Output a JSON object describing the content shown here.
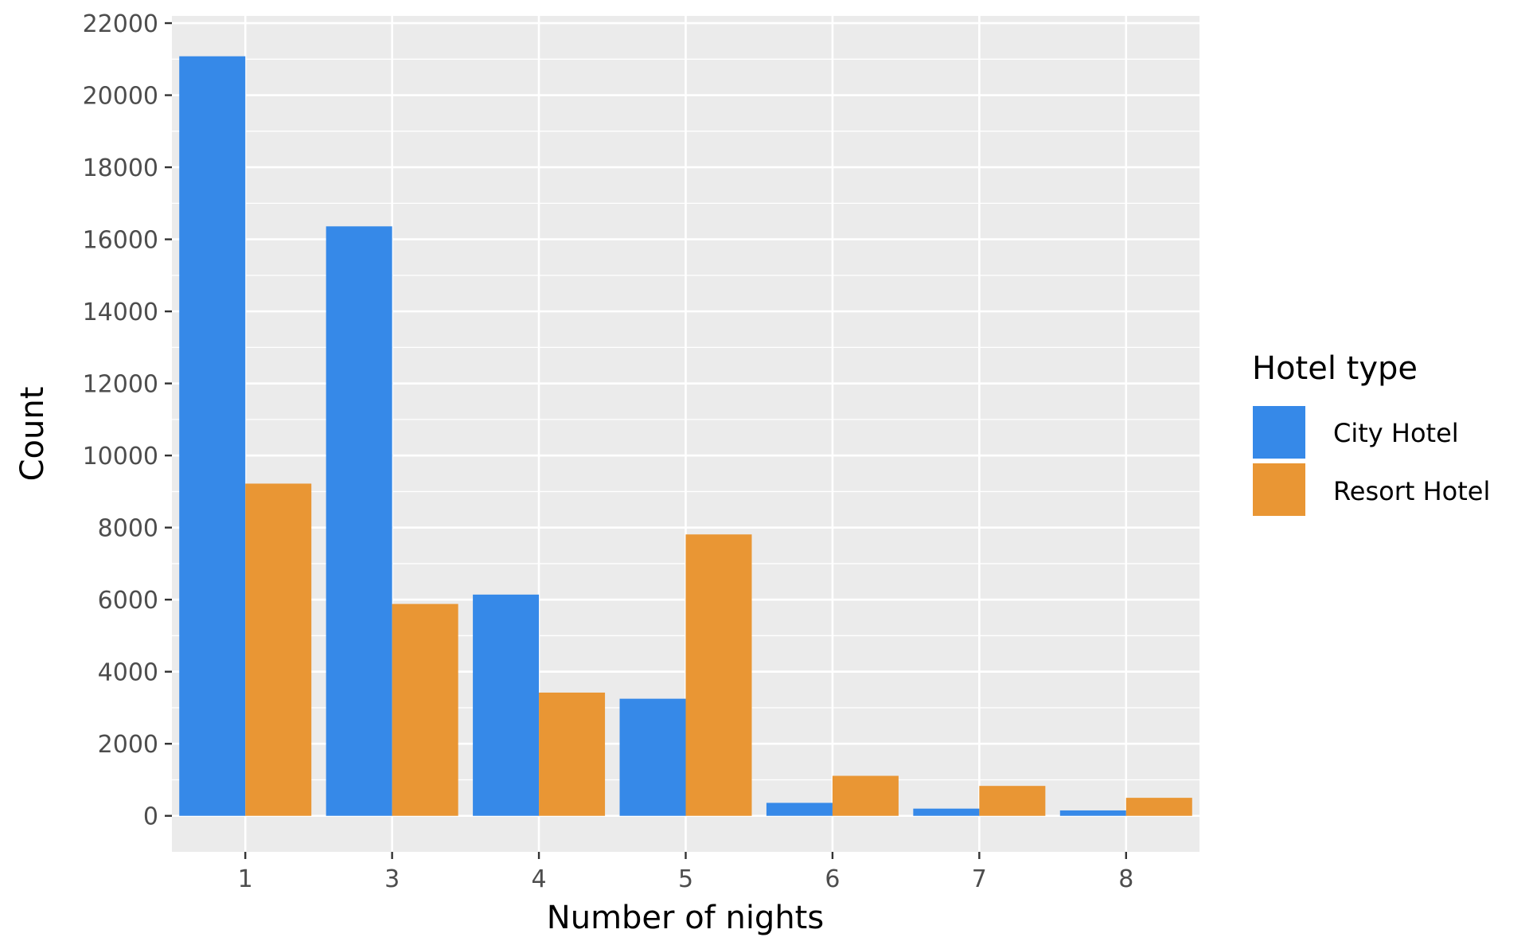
{
  "chart_data": {
    "type": "bar",
    "title": "",
    "xlabel": "Number of nights",
    "ylabel": "Count",
    "categories": [
      "1",
      "3",
      "4",
      "5",
      "6",
      "7",
      "8"
    ],
    "series": [
      {
        "name": "City Hotel",
        "color": "#3689E8",
        "values": [
          21080,
          16360,
          6140,
          3250,
          360,
          200,
          150
        ]
      },
      {
        "name": "Resort Hotel",
        "color": "#E99634",
        "values": [
          9220,
          5880,
          3420,
          7810,
          1110,
          830,
          500
        ]
      }
    ],
    "yticks": [
      "0",
      "2000",
      "4000",
      "6000",
      "8000",
      "10000",
      "12000",
      "14000",
      "16000",
      "18000",
      "20000",
      "22000"
    ],
    "ylim": [
      -1000,
      22200
    ],
    "grid": true,
    "legend": {
      "title": "Hotel type",
      "position": "right"
    },
    "panel_background": "#EBEBEB",
    "gridline_color": "#FFFFFF"
  }
}
